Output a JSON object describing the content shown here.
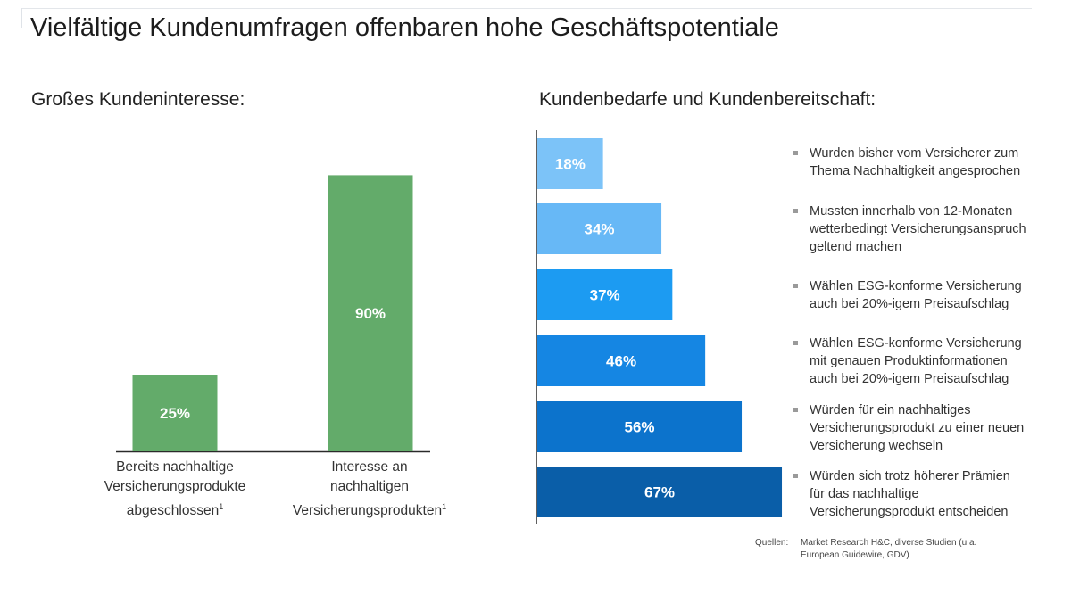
{
  "title": "Vielfältige Kundenumfragen offenbaren hohe Geschäftspotentiale",
  "left_subhead": "Großes Kundeninteresse:",
  "right_subhead": "Kundenbedarfe und Kundenbereitschaft:",
  "chart_data": [
    {
      "type": "bar",
      "categories": [
        "Bereits nachhaltige Versicherungsprodukte abgeschlossen",
        "Interesse an nachhaltigen Versicherungsprodukten"
      ],
      "category_lines": [
        [
          "Bereits nachhaltige",
          "Versicherungsprodukte",
          "abgeschlossen"
        ],
        [
          "Interesse an",
          "nachhaltigen",
          "Versicherungsprodukten"
        ]
      ],
      "footnote_mark": "1",
      "values": [
        25,
        90
      ],
      "value_labels": [
        "25%",
        "90%"
      ],
      "unit": "%",
      "ylim": [
        0,
        100
      ],
      "color": "#63ab6a"
    },
    {
      "type": "bar",
      "orientation": "horizontal",
      "categories": [
        "Wurden bisher vom Versicherer zum Thema Nachhaltigkeit angesprochen",
        "Mussten innerhalb von 12-Monaten wetterbedingt Versicherungsanspruch geltend machen",
        "Wählen ESG-konforme Versicherung auch bei 20%-igem Preisaufschlag",
        "Wählen ESG-konforme Versicherung mit genauen Produktinformationen auch bei 20%-igem Preisaufschlag",
        "Würden für ein nachhaltiges Versicherungsprodukt zu einer neuen Versicherung wechseln",
        "Würden sich trotz höherer Prämien für das nachhaltige Versicherungsprodukt entscheiden"
      ],
      "descriptions": [
        "Wurden bisher vom Versicherer zum\nThema Nachhaltigkeit angesprochen",
        "Mussten innerhalb von 12-Monaten\nwetterbedingt Versicherungsanspruch\ngeltend machen",
        "Wählen ESG-konforme Versicherung\nauch bei 20%-igem Preisaufschlag",
        "Wählen ESG-konforme Versicherung\nmit genauen Produktinformationen\nauch bei 20%-igem Preisaufschlag",
        "Würden für ein nachhaltiges\nVersicherungsprodukt zu einer neuen\nVersicherung wechseln",
        "Würden sich trotz höherer Prämien\nfür das nachhaltige\nVersicherungsprodukt entscheiden"
      ],
      "values": [
        18,
        34,
        37,
        46,
        56,
        67
      ],
      "value_labels": [
        "18%",
        "34%",
        "37%",
        "46%",
        "56%",
        "67%"
      ],
      "unit": "%",
      "colors": [
        "#7cc3f8",
        "#67b8f6",
        "#1c9bf2",
        "#1586e3",
        "#0c73cc",
        "#0a5ea8"
      ]
    }
  ],
  "source": {
    "label": "Quellen:",
    "text": "Market Research H&C, diverse Studien (u.a.\nEuropean Guidewire, GDV)"
  }
}
